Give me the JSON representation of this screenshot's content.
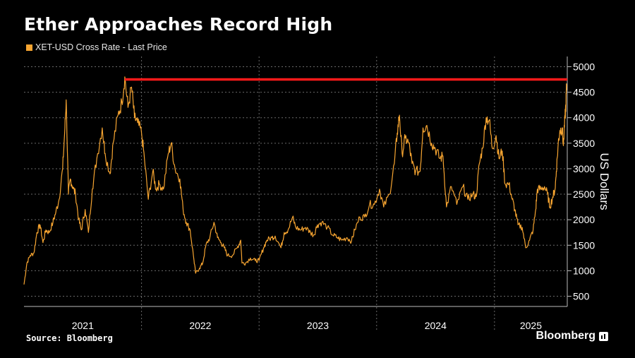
{
  "title": "Ether Approaches Record High",
  "legend": {
    "label": "XET-USD Cross Rate - Last Price",
    "color": "#f7a531"
  },
  "source": "Source: Bloomberg",
  "brand": "Bloomberg",
  "colors": {
    "line": "#f7a531",
    "record_line": "#ff1a1a",
    "grid": "#6a6a6a",
    "axis": "#bcbcbc"
  },
  "chart_data": {
    "type": "line",
    "title": "Ether Approaches Record High",
    "ylabel": "US Dollars",
    "ylim": [
      300,
      5200
    ],
    "y_ticks": [
      500,
      1000,
      1500,
      2000,
      2500,
      3000,
      3500,
      4000,
      4500,
      5000
    ],
    "y_tick_labels": [
      "500",
      "1000",
      "1500",
      "2000",
      "2500",
      "3000",
      "3500",
      "4000",
      "4500",
      "5000"
    ],
    "y_axis_position": "right",
    "x_range": [
      "2021-01-01",
      "2025-08-15"
    ],
    "x_tick_labels": [
      "2021",
      "2022",
      "2023",
      "2024",
      "2025"
    ],
    "grid": true,
    "legend_position": "top-left",
    "series": [
      {
        "name": "XET-USD Cross Rate - Last Price",
        "points": [
          [
            "2021-01-01",
            730
          ],
          [
            "2021-01-10",
            1150
          ],
          [
            "2021-01-20",
            1300
          ],
          [
            "2021-02-01",
            1350
          ],
          [
            "2021-02-10",
            1750
          ],
          [
            "2021-02-20",
            1900
          ],
          [
            "2021-03-01",
            1550
          ],
          [
            "2021-03-10",
            1800
          ],
          [
            "2021-03-20",
            1750
          ],
          [
            "2021-04-01",
            1950
          ],
          [
            "2021-04-10",
            2150
          ],
          [
            "2021-04-20",
            2400
          ],
          [
            "2021-05-01",
            3000
          ],
          [
            "2021-05-08",
            3800
          ],
          [
            "2021-05-12",
            4350
          ],
          [
            "2021-05-19",
            2500
          ],
          [
            "2021-05-25",
            2800
          ],
          [
            "2021-06-01",
            2650
          ],
          [
            "2021-06-10",
            2500
          ],
          [
            "2021-06-20",
            2000
          ],
          [
            "2021-06-28",
            1800
          ],
          [
            "2021-07-10",
            2200
          ],
          [
            "2021-07-20",
            1750
          ],
          [
            "2021-08-01",
            2600
          ],
          [
            "2021-08-15",
            3200
          ],
          [
            "2021-09-01",
            3800
          ],
          [
            "2021-09-10",
            3300
          ],
          [
            "2021-09-25",
            2900
          ],
          [
            "2021-10-05",
            3500
          ],
          [
            "2021-10-20",
            4050
          ],
          [
            "2021-11-01",
            4300
          ],
          [
            "2021-11-10",
            4800
          ],
          [
            "2021-11-20",
            4200
          ],
          [
            "2021-12-01",
            4600
          ],
          [
            "2021-12-10",
            4000
          ],
          [
            "2021-12-20",
            3900
          ],
          [
            "2022-01-01",
            3700
          ],
          [
            "2022-01-10",
            3200
          ],
          [
            "2022-01-22",
            2400
          ],
          [
            "2022-02-05",
            2950
          ],
          [
            "2022-02-15",
            2600
          ],
          [
            "2022-02-25",
            2700
          ],
          [
            "2022-03-10",
            2600
          ],
          [
            "2022-03-25",
            3300
          ],
          [
            "2022-04-03",
            3500
          ],
          [
            "2022-04-15",
            3000
          ],
          [
            "2022-04-30",
            2800
          ],
          [
            "2022-05-10",
            2200
          ],
          [
            "2022-05-20",
            1950
          ],
          [
            "2022-06-01",
            1800
          ],
          [
            "2022-06-13",
            1200
          ],
          [
            "2022-06-18",
            950
          ],
          [
            "2022-06-30",
            1050
          ],
          [
            "2022-07-10",
            1150
          ],
          [
            "2022-07-20",
            1500
          ],
          [
            "2022-08-01",
            1650
          ],
          [
            "2022-08-14",
            1950
          ],
          [
            "2022-08-25",
            1650
          ],
          [
            "2022-09-05",
            1550
          ],
          [
            "2022-09-15",
            1450
          ],
          [
            "2022-09-25",
            1300
          ],
          [
            "2022-10-10",
            1300
          ],
          [
            "2022-10-25",
            1450
          ],
          [
            "2022-11-05",
            1600
          ],
          [
            "2022-11-09",
            1150
          ],
          [
            "2022-11-20",
            1150
          ],
          [
            "2022-12-05",
            1250
          ],
          [
            "2022-12-20",
            1200
          ],
          [
            "2023-01-01",
            1200
          ],
          [
            "2023-01-15",
            1450
          ],
          [
            "2023-01-25",
            1600
          ],
          [
            "2023-02-10",
            1650
          ],
          [
            "2023-02-20",
            1680
          ],
          [
            "2023-03-10",
            1450
          ],
          [
            "2023-03-20",
            1750
          ],
          [
            "2023-04-01",
            1800
          ],
          [
            "2023-04-15",
            2050
          ],
          [
            "2023-04-25",
            1850
          ],
          [
            "2023-05-10",
            1800
          ],
          [
            "2023-05-25",
            1850
          ],
          [
            "2023-06-10",
            1750
          ],
          [
            "2023-06-20",
            1700
          ],
          [
            "2023-07-01",
            1900
          ],
          [
            "2023-07-15",
            1950
          ],
          [
            "2023-08-01",
            1850
          ],
          [
            "2023-08-18",
            1700
          ],
          [
            "2023-09-01",
            1650
          ],
          [
            "2023-09-15",
            1600
          ],
          [
            "2023-10-01",
            1650
          ],
          [
            "2023-10-15",
            1580
          ],
          [
            "2023-10-25",
            1800
          ],
          [
            "2023-11-10",
            2050
          ],
          [
            "2023-11-25",
            2050
          ],
          [
            "2023-12-10",
            2300
          ],
          [
            "2023-12-25",
            2300
          ],
          [
            "2024-01-10",
            2600
          ],
          [
            "2024-01-23",
            2250
          ],
          [
            "2024-02-10",
            2500
          ],
          [
            "2024-02-25",
            3100
          ],
          [
            "2024-03-05",
            3700
          ],
          [
            "2024-03-12",
            4050
          ],
          [
            "2024-03-20",
            3300
          ],
          [
            "2024-03-30",
            3600
          ],
          [
            "2024-04-10",
            3500
          ],
          [
            "2024-04-20",
            3100
          ],
          [
            "2024-05-01",
            2950
          ],
          [
            "2024-05-15",
            2950
          ],
          [
            "2024-05-24",
            3800
          ],
          [
            "2024-06-05",
            3850
          ],
          [
            "2024-06-20",
            3500
          ],
          [
            "2024-07-01",
            3400
          ],
          [
            "2024-07-15",
            3200
          ],
          [
            "2024-07-25",
            3250
          ],
          [
            "2024-08-05",
            2250
          ],
          [
            "2024-08-20",
            2650
          ],
          [
            "2024-09-06",
            2300
          ],
          [
            "2024-09-25",
            2650
          ],
          [
            "2024-10-10",
            2400
          ],
          [
            "2024-10-25",
            2500
          ],
          [
            "2024-11-05",
            2450
          ],
          [
            "2024-11-15",
            3100
          ],
          [
            "2024-11-25",
            3400
          ],
          [
            "2024-12-06",
            4000
          ],
          [
            "2024-12-16",
            3950
          ],
          [
            "2024-12-25",
            3400
          ],
          [
            "2025-01-06",
            3650
          ],
          [
            "2025-01-15",
            3200
          ],
          [
            "2025-01-25",
            3350
          ],
          [
            "2025-02-03",
            2700
          ],
          [
            "2025-02-15",
            2700
          ],
          [
            "2025-02-25",
            2400
          ],
          [
            "2025-03-05",
            2200
          ],
          [
            "2025-03-15",
            1900
          ],
          [
            "2025-03-28",
            1850
          ],
          [
            "2025-04-08",
            1450
          ],
          [
            "2025-04-20",
            1600
          ],
          [
            "2025-05-01",
            1800
          ],
          [
            "2025-05-09",
            2200
          ],
          [
            "2025-05-14",
            2600
          ],
          [
            "2025-05-25",
            2600
          ],
          [
            "2025-06-05",
            2650
          ],
          [
            "2025-06-15",
            2500
          ],
          [
            "2025-06-22",
            2250
          ],
          [
            "2025-07-01",
            2450
          ],
          [
            "2025-07-08",
            2600
          ],
          [
            "2025-07-12",
            2950
          ],
          [
            "2025-07-18",
            3500
          ],
          [
            "2025-07-23",
            3750
          ],
          [
            "2025-07-30",
            3800
          ],
          [
            "2025-08-03",
            3450
          ],
          [
            "2025-08-08",
            4000
          ],
          [
            "2025-08-11",
            4300
          ],
          [
            "2025-08-13",
            4650
          ]
        ]
      }
    ],
    "annotations": [
      {
        "type": "horizontal_line",
        "y": 4750,
        "x_start": "2021-11-10",
        "x_end": "2025-08-15",
        "color": "#ff1a1a"
      }
    ]
  }
}
